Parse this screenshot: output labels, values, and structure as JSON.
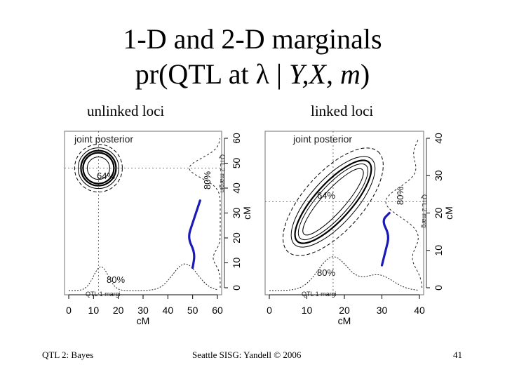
{
  "title": {
    "line1": "1-D and 2-D marginals",
    "line2_prefix": "pr(QTL at ",
    "line2_lambda": "λ",
    "line2_sep": " | ",
    "line2_vars": "Y,X, m",
    "line2_suffix": ")"
  },
  "panels": {
    "left_label": "unlinked loci",
    "right_label": "linked loci"
  },
  "footer": {
    "left": "QTL 2: Bayes",
    "center": "Seattle SISG: Yandell © 2006",
    "right": "41"
  },
  "chart_data": [
    {
      "type": "contour",
      "title": "joint posterior",
      "xlabel": "cM",
      "ylabel": "cM",
      "xlim": [
        0,
        60
      ],
      "ylim": [
        0,
        60
      ],
      "x_ticks": [
        "0",
        "10",
        "20",
        "30",
        "40",
        "50",
        "60"
      ],
      "y_ticks": [
        "0",
        "10",
        "20",
        "30",
        "40",
        "50",
        "60"
      ],
      "annotations": [
        "64%",
        "80%",
        "80%"
      ],
      "marginal_labels": [
        "QTL 1 margi",
        "QTL 2 margin"
      ],
      "contour_center": [
        12,
        48
      ],
      "highlight_curve": [
        [
          50,
          8
        ],
        [
          51,
          14
        ],
        [
          48,
          20
        ],
        [
          50,
          26
        ],
        [
          52,
          32
        ],
        [
          53,
          35
        ]
      ],
      "highlight_color": "#1a1ab4"
    },
    {
      "type": "contour",
      "title": "joint posterior",
      "xlabel": "cM",
      "ylabel": "cM",
      "xlim": [
        0,
        40
      ],
      "ylim": [
        0,
        40
      ],
      "x_ticks": [
        "0",
        "10",
        "20",
        "30",
        "40"
      ],
      "y_ticks": [
        "0",
        "10",
        "20",
        "30",
        "40"
      ],
      "annotations": [
        "64%",
        "80%",
        "80%"
      ],
      "marginal_labels": [
        "QTL 1 margi",
        "QTL 2 marg"
      ],
      "contour_center": [
        17,
        23
      ],
      "highlight_curve": [
        [
          30,
          6
        ],
        [
          31,
          10
        ],
        [
          32,
          14
        ],
        [
          30,
          18
        ],
        [
          32,
          20
        ]
      ],
      "highlight_color": "#1a1ab4"
    }
  ]
}
